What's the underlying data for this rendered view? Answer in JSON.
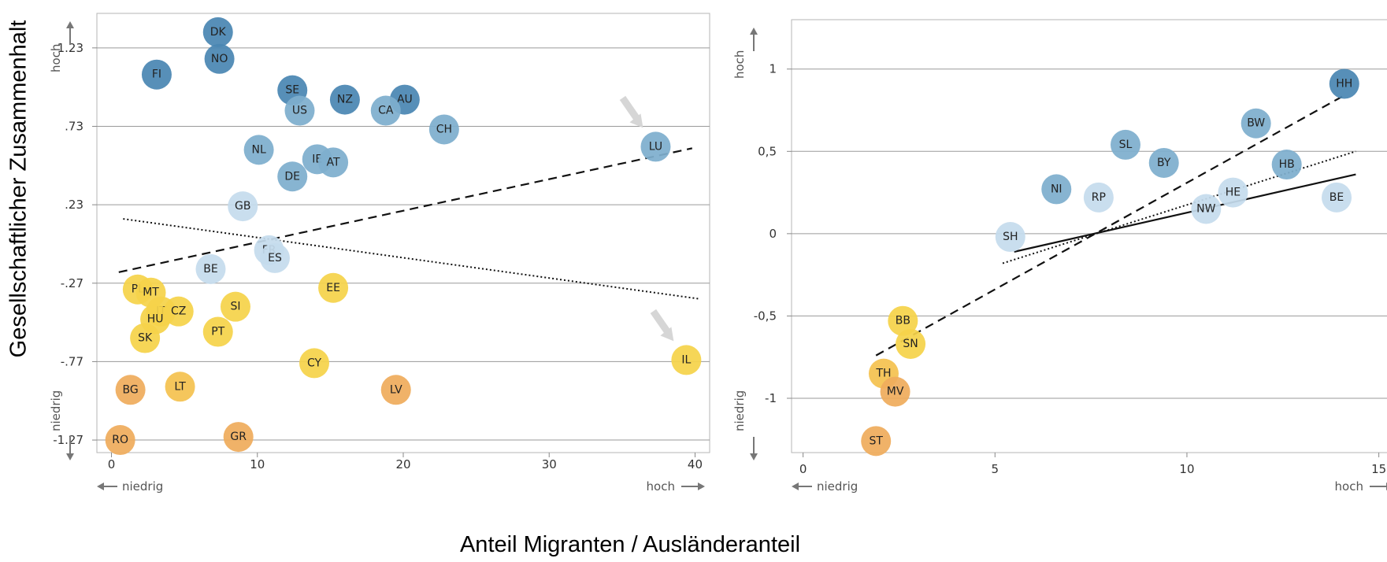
{
  "global": {
    "ylabel": "Gesellschaftlicher Zusammenhalt",
    "xlabel": "Anteil Migranten / Ausländeranteil"
  },
  "colors": {
    "dark_blue": "#4a87b3",
    "mid_blue": "#7eaecd",
    "light_blue": "#c5dced",
    "yellow": "#f5d34a",
    "yellow_orange": "#f4c250",
    "orange": "#efac5c",
    "grid": "#9a9a9a",
    "arrow": "#d6d6d6"
  },
  "chart_data": [
    {
      "type": "scatter",
      "xlim": [
        -1,
        41
      ],
      "ylim": [
        -1.35,
        1.45
      ],
      "xticks": [
        0,
        10,
        20,
        30,
        40
      ],
      "yticks": [
        1.23,
        0.73,
        0.23,
        -0.27,
        -0.77,
        -1.27
      ],
      "ytick_labels": [
        "1.23",
        ".73",
        ".23",
        "-.27",
        "-.77",
        "-1.27"
      ],
      "grid": "horizontal",
      "x_low": "niedrig",
      "x_high": "hoch",
      "y_low": "niedrig",
      "y_high": "hoch",
      "points": [
        {
          "label": "DK",
          "x": 7.3,
          "y": 1.33,
          "color": "dark_blue"
        },
        {
          "label": "NO",
          "x": 7.4,
          "y": 1.16,
          "color": "dark_blue"
        },
        {
          "label": "FI",
          "x": 3.1,
          "y": 1.06,
          "color": "dark_blue"
        },
        {
          "label": "SE",
          "x": 12.4,
          "y": 0.96,
          "color": "dark_blue"
        },
        {
          "label": "NZ",
          "x": 16,
          "y": 0.9,
          "color": "dark_blue"
        },
        {
          "label": "AU",
          "x": 20.1,
          "y": 0.9,
          "color": "dark_blue"
        },
        {
          "label": "US",
          "x": 12.9,
          "y": 0.83,
          "color": "mid_blue"
        },
        {
          "label": "CA",
          "x": 18.8,
          "y": 0.83,
          "color": "mid_blue"
        },
        {
          "label": "CH",
          "x": 22.8,
          "y": 0.71,
          "color": "mid_blue"
        },
        {
          "label": "LU",
          "x": 37.3,
          "y": 0.6,
          "color": "mid_blue"
        },
        {
          "label": "NL",
          "x": 10.1,
          "y": 0.58,
          "color": "mid_blue"
        },
        {
          "label": "IE",
          "x": 14.1,
          "y": 0.52,
          "color": "mid_blue"
        },
        {
          "label": "AT",
          "x": 15.2,
          "y": 0.5,
          "color": "mid_blue"
        },
        {
          "label": "DE",
          "x": 12.4,
          "y": 0.41,
          "color": "mid_blue"
        },
        {
          "label": "GB",
          "x": 9,
          "y": 0.22,
          "color": "light_blue"
        },
        {
          "label": "FR",
          "x": 10.8,
          "y": -0.06,
          "color": "light_blue"
        },
        {
          "label": "ES",
          "x": 11.2,
          "y": -0.11,
          "color": "light_blue"
        },
        {
          "label": "BE",
          "x": 6.8,
          "y": -0.18,
          "color": "light_blue"
        },
        {
          "label": "PL",
          "x": 1.8,
          "y": -0.31,
          "color": "yellow"
        },
        {
          "label": "MT",
          "x": 2.7,
          "y": -0.33,
          "color": "yellow"
        },
        {
          "label": "EE",
          "x": 15.2,
          "y": -0.3,
          "color": "yellow"
        },
        {
          "label": "SI",
          "x": 8.5,
          "y": -0.42,
          "color": "yellow"
        },
        {
          "label": "IT",
          "x": 3.4,
          "y": -0.45,
          "color": "yellow"
        },
        {
          "label": "CZ",
          "x": 4.6,
          "y": -0.45,
          "color": "yellow"
        },
        {
          "label": "HU",
          "x": 3,
          "y": -0.5,
          "color": "yellow"
        },
        {
          "label": "PT",
          "x": 7.3,
          "y": -0.58,
          "color": "yellow"
        },
        {
          "label": "SK",
          "x": 2.3,
          "y": -0.62,
          "color": "yellow"
        },
        {
          "label": "CY",
          "x": 13.9,
          "y": -0.78,
          "color": "yellow"
        },
        {
          "label": "IL",
          "x": 39.4,
          "y": -0.76,
          "color": "yellow"
        },
        {
          "label": "LT",
          "x": 4.7,
          "y": -0.93,
          "color": "yellow_orange"
        },
        {
          "label": "BG",
          "x": 1.3,
          "y": -0.95,
          "color": "orange"
        },
        {
          "label": "LV",
          "x": 19.5,
          "y": -0.95,
          "color": "orange"
        },
        {
          "label": "GR",
          "x": 8.7,
          "y": -1.25,
          "color": "orange"
        },
        {
          "label": "RO",
          "x": 0.6,
          "y": -1.27,
          "color": "orange"
        }
      ],
      "lines": [
        {
          "style": "dashed",
          "x1": 0.5,
          "y1": -0.2,
          "x2": 39.8,
          "y2": 0.59
        },
        {
          "style": "dotted",
          "x1": 0.8,
          "y1": 0.14,
          "x2": 40.3,
          "y2": -0.37
        }
      ],
      "arrows": [
        {
          "x": 37.3,
          "y": 0.6
        },
        {
          "x": 39.4,
          "y": -0.76
        }
      ]
    },
    {
      "type": "scatter",
      "xlim": [
        -0.3,
        15.5
      ],
      "ylim": [
        -1.33,
        1.3
      ],
      "xticks": [
        0,
        5,
        10,
        15
      ],
      "yticks": [
        1,
        0.5,
        0,
        -0.5,
        -1
      ],
      "ytick_labels": [
        "1",
        "0,5",
        "0",
        "-0,5",
        "-1"
      ],
      "grid": "horizontal",
      "x_low": "niedrig",
      "x_high": "hoch",
      "y_low": "niedrig",
      "y_high": "hoch",
      "points": [
        {
          "label": "HH",
          "x": 14.1,
          "y": 0.91,
          "color": "dark_blue"
        },
        {
          "label": "BW",
          "x": 11.8,
          "y": 0.67,
          "color": "mid_blue"
        },
        {
          "label": "SL",
          "x": 8.4,
          "y": 0.54,
          "color": "mid_blue"
        },
        {
          "label": "BY",
          "x": 9.4,
          "y": 0.43,
          "color": "mid_blue"
        },
        {
          "label": "HB",
          "x": 12.6,
          "y": 0.42,
          "color": "mid_blue"
        },
        {
          "label": "NI",
          "x": 6.6,
          "y": 0.27,
          "color": "mid_blue"
        },
        {
          "label": "RP",
          "x": 7.7,
          "y": 0.22,
          "color": "light_blue"
        },
        {
          "label": "HE",
          "x": 11.2,
          "y": 0.25,
          "color": "light_blue"
        },
        {
          "label": "NW",
          "x": 10.5,
          "y": 0.15,
          "color": "light_blue"
        },
        {
          "label": "BE",
          "x": 13.9,
          "y": 0.22,
          "color": "light_blue"
        },
        {
          "label": "SH",
          "x": 5.4,
          "y": -0.02,
          "color": "light_blue"
        },
        {
          "label": "BB",
          "x": 2.6,
          "y": -0.53,
          "color": "yellow"
        },
        {
          "label": "SN",
          "x": 2.8,
          "y": -0.67,
          "color": "yellow"
        },
        {
          "label": "TH",
          "x": 2.1,
          "y": -0.85,
          "color": "yellow_orange"
        },
        {
          "label": "MV",
          "x": 2.4,
          "y": -0.96,
          "color": "orange"
        },
        {
          "label": "ST",
          "x": 1.9,
          "y": -1.26,
          "color": "orange"
        }
      ],
      "lines": [
        {
          "style": "dashed",
          "x1": 1.9,
          "y1": -0.74,
          "x2": 14.1,
          "y2": 0.84
        },
        {
          "style": "dotted",
          "x1": 5.2,
          "y1": -0.18,
          "x2": 14.4,
          "y2": 0.5
        },
        {
          "style": "solid",
          "x1": 5.5,
          "y1": -0.11,
          "x2": 14.4,
          "y2": 0.36
        }
      ]
    }
  ]
}
